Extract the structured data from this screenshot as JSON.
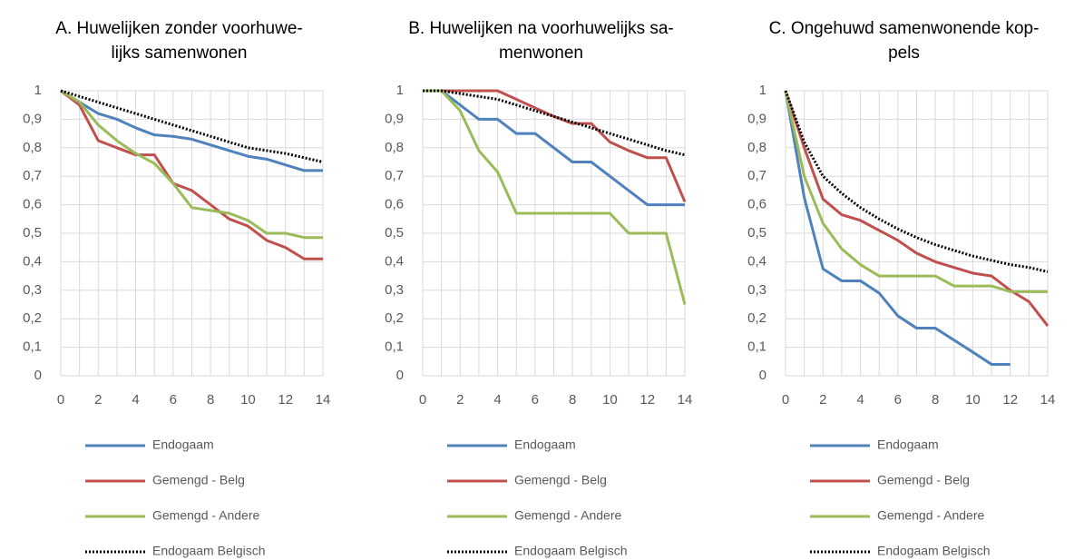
{
  "chart_data": [
    {
      "type": "line",
      "title": [
        "A. Huwelijken zonder voorhuwe-",
        "lijks samenwonen"
      ],
      "x": [
        0,
        1,
        2,
        3,
        4,
        5,
        6,
        7,
        8,
        9,
        10,
        11,
        12,
        13,
        14
      ],
      "xlim": [
        0,
        14
      ],
      "xticks": [
        0,
        2,
        4,
        6,
        8,
        10,
        12,
        14
      ],
      "ylim": [
        0,
        1
      ],
      "yticks": [
        0,
        {
          "value": 0.1,
          "label": "0,1"
        },
        {
          "value": 0.2,
          "label": "0,2"
        },
        {
          "value": 0.3,
          "label": "0,3"
        },
        {
          "value": 0.4,
          "label": "0,4"
        },
        {
          "value": 0.5,
          "label": "0,5"
        },
        {
          "value": 0.6,
          "label": "0,6"
        },
        {
          "value": 0.7,
          "label": "0,7"
        },
        {
          "value": 0.8,
          "label": "0,8"
        },
        {
          "value": 0.9,
          "label": "0,9"
        },
        1
      ],
      "grid": true,
      "legend": "bottom",
      "series": [
        {
          "name": "Endogaam",
          "color": "#4f81bd",
          "values": [
            1,
            0.96,
            0.92,
            0.9,
            0.87,
            0.845,
            0.84,
            0.83,
            0.81,
            0.79,
            0.77,
            0.76,
            0.74,
            0.72,
            0.72
          ]
        },
        {
          "name": "Gemengd - Belg",
          "color": "#c0504d",
          "values": [
            1,
            0.95,
            0.825,
            0.8,
            0.775,
            0.775,
            0.675,
            0.65,
            0.6,
            0.55,
            0.525,
            0.475,
            0.45,
            0.41,
            0.41
          ]
        },
        {
          "name": "Gemengd - Andere",
          "color": "#9bbb59",
          "values": [
            1,
            0.96,
            0.88,
            0.825,
            0.78,
            0.745,
            0.675,
            0.59,
            0.58,
            0.57,
            0.545,
            0.5,
            0.5,
            0.485,
            0.485
          ]
        },
        {
          "name": "Endogaam Belgisch",
          "color": "#000000",
          "line_style": "dotted",
          "values": [
            1,
            0.98,
            0.96,
            0.94,
            0.92,
            0.9,
            0.88,
            0.86,
            0.84,
            0.82,
            0.8,
            0.79,
            0.78,
            0.765,
            0.75
          ]
        }
      ]
    },
    {
      "type": "line",
      "title": [
        "B. Huwelijken na voorhuwelijks sa-",
        "menwonen"
      ],
      "x": [
        0,
        1,
        2,
        3,
        4,
        5,
        6,
        7,
        8,
        9,
        10,
        11,
        12,
        13,
        14
      ],
      "xlim": [
        0,
        14
      ],
      "xticks": [
        0,
        2,
        4,
        6,
        8,
        10,
        12,
        14
      ],
      "ylim": [
        0,
        1
      ],
      "yticks": [
        0,
        {
          "value": 0.1,
          "label": "0,1"
        },
        {
          "value": 0.2,
          "label": "0,2"
        },
        {
          "value": 0.3,
          "label": "0,3"
        },
        {
          "value": 0.4,
          "label": "0,4"
        },
        {
          "value": 0.5,
          "label": "0,5"
        },
        {
          "value": 0.6,
          "label": "0,6"
        },
        {
          "value": 0.7,
          "label": "0,7"
        },
        {
          "value": 0.8,
          "label": "0,8"
        },
        {
          "value": 0.9,
          "label": "0,9"
        },
        1
      ],
      "grid": true,
      "legend": "bottom",
      "series": [
        {
          "name": "Endogaam",
          "color": "#4f81bd",
          "values": [
            1,
            1,
            0.95,
            0.9,
            0.9,
            0.85,
            0.85,
            0.8,
            0.75,
            0.75,
            0.7,
            0.65,
            0.6,
            0.6,
            0.6
          ]
        },
        {
          "name": "Gemengd - Belg",
          "color": "#c0504d",
          "values": [
            1,
            1,
            1,
            1,
            1,
            0.97,
            0.94,
            0.91,
            0.885,
            0.885,
            0.82,
            0.79,
            0.765,
            0.765,
            0.61
          ]
        },
        {
          "name": "Gemengd - Andere",
          "color": "#9bbb59",
          "values": [
            1,
            1,
            0.93,
            0.79,
            0.715,
            0.57,
            0.57,
            0.57,
            0.57,
            0.57,
            0.57,
            0.5,
            0.5,
            0.5,
            0.25
          ]
        },
        {
          "name": "Endogaam Belgisch",
          "color": "#000000",
          "line_style": "dotted",
          "values": [
            1,
            1,
            0.99,
            0.98,
            0.97,
            0.95,
            0.93,
            0.91,
            0.89,
            0.87,
            0.85,
            0.83,
            0.81,
            0.79,
            0.775
          ]
        }
      ]
    },
    {
      "type": "line",
      "title": [
        "C. Ongehuwd samenwonende kop-",
        "pels"
      ],
      "x": [
        0,
        1,
        2,
        3,
        4,
        5,
        6,
        7,
        8,
        9,
        10,
        11,
        12,
        13,
        14
      ],
      "xlim": [
        0,
        14
      ],
      "xticks": [
        0,
        2,
        4,
        6,
        8,
        10,
        12,
        14
      ],
      "ylim": [
        0,
        1
      ],
      "yticks": [
        0,
        {
          "value": 0.1,
          "label": "0,1"
        },
        {
          "value": 0.2,
          "label": "0,2"
        },
        {
          "value": 0.3,
          "label": "0,3"
        },
        {
          "value": 0.4,
          "label": "0,4"
        },
        {
          "value": 0.5,
          "label": "0,5"
        },
        {
          "value": 0.6,
          "label": "0,6"
        },
        {
          "value": 0.7,
          "label": "0,7"
        },
        {
          "value": 0.8,
          "label": "0,8"
        },
        {
          "value": 0.9,
          "label": "0,9"
        },
        1
      ],
      "grid": true,
      "legend": "bottom",
      "series": [
        {
          "name": "Endogaam",
          "color": "#4f81bd",
          "values": [
            1,
            0.625,
            0.375,
            0.333,
            0.333,
            0.29,
            0.21,
            0.167,
            0.167,
            0.125,
            0.083,
            0.04,
            0.04,
            null,
            null
          ]
        },
        {
          "name": "Gemengd - Belg",
          "color": "#c0504d",
          "values": [
            1,
            0.8,
            0.62,
            0.565,
            0.545,
            0.51,
            0.475,
            0.43,
            0.4,
            0.38,
            0.36,
            0.35,
            0.3,
            0.26,
            0.175
          ]
        },
        {
          "name": "Gemengd - Andere",
          "color": "#9bbb59",
          "values": [
            1,
            0.7,
            0.535,
            0.445,
            0.39,
            0.35,
            0.35,
            0.35,
            0.35,
            0.315,
            0.315,
            0.315,
            0.295,
            0.295,
            0.295
          ]
        },
        {
          "name": "Endogaam Belgisch",
          "color": "#000000",
          "line_style": "dotted",
          "values": [
            1,
            0.82,
            0.7,
            0.64,
            0.59,
            0.55,
            0.515,
            0.485,
            0.46,
            0.44,
            0.42,
            0.405,
            0.39,
            0.38,
            0.365
          ]
        }
      ]
    }
  ]
}
